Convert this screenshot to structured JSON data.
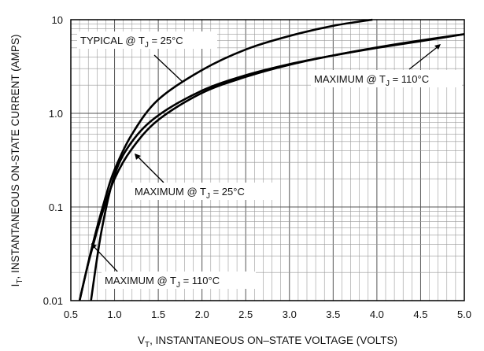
{
  "chart_data": {
    "type": "line",
    "xlabel_main": "V",
    "xlabel_sub": "T",
    "xlabel_rest": ", INSTANTANEOUS ON–STATE VOLTAGE (VOLTS)",
    "ylabel_main": "I",
    "ylabel_sub": "T",
    "ylabel_rest": ", INSTANTANEOUS ON-STATE CURRENT (AMPS)",
    "xlim": [
      0.5,
      5.0
    ],
    "ylim": [
      0.01,
      10
    ],
    "yscale": "log",
    "grid": true,
    "x_ticks": [
      "0.5",
      "1.0",
      "1.5",
      "2.0",
      "2.5",
      "3.0",
      "3.5",
      "4.0",
      "4.5",
      "5.0"
    ],
    "y_ticks": [
      "0.01",
      "0.1",
      "1.0",
      "10"
    ],
    "series": [
      {
        "name_main": "TYPICAL @ T",
        "name_sub": "J",
        "name_rest": " = 25°C",
        "x": [
          0.6,
          0.75,
          0.9,
          1.0,
          1.2,
          1.5,
          2.0,
          2.5,
          3.0,
          3.5,
          3.95
        ],
        "y": [
          0.01,
          0.04,
          0.13,
          0.25,
          0.6,
          1.4,
          2.9,
          4.8,
          6.7,
          8.6,
          10
        ]
      },
      {
        "name_main": "MAXIMUM @ T",
        "name_sub": "J",
        "name_rest": " = 25°C",
        "x": [
          0.73,
          0.85,
          1.0,
          1.2,
          1.5,
          2.0,
          2.5,
          3.0,
          3.5,
          4.0,
          4.5,
          5.0
        ],
        "y": [
          0.01,
          0.055,
          0.22,
          0.5,
          0.95,
          1.75,
          2.55,
          3.35,
          4.15,
          5.0,
          5.9,
          7.0
        ]
      },
      {
        "name_main": "MAXIMUM @ T",
        "name_sub": "J",
        "name_rest": " = 110°C",
        "x": [
          0.6,
          0.7,
          0.85,
          1.0,
          1.2,
          1.5,
          2.0,
          2.5,
          3.0,
          3.5,
          4.0,
          4.5,
          5.0
        ],
        "y": [
          0.01,
          0.025,
          0.08,
          0.2,
          0.42,
          0.85,
          1.65,
          2.45,
          3.3,
          4.15,
          5.05,
          6.0,
          7.0
        ]
      }
    ]
  }
}
